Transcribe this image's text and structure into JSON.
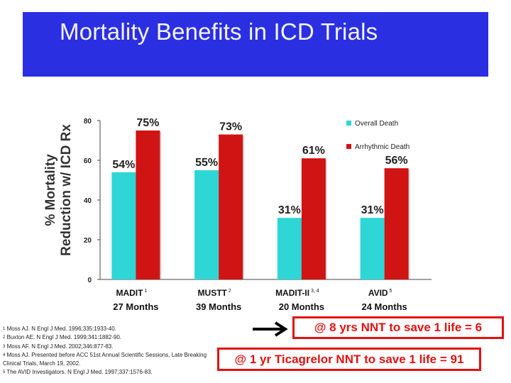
{
  "slide": {
    "title": "Mortality Benefits in ICD Trials",
    "annotation_1": "@ 8 yrs NNT to save 1 life = 6",
    "annotation_2": "@ 1 yr Ticagrelor NNT to save 1 life = 91",
    "references": [
      {
        "num": "1",
        "text": "Moss AJ. N Engl J Med. 1996;335:1933-40."
      },
      {
        "num": "2",
        "text": "Buxton AE. N Engl J Med. 1999;341:1882-90."
      },
      {
        "num": "3",
        "text": "Moss AF. N Engl J Med. 2002;346:877-83."
      },
      {
        "num": "4",
        "text": "Moss AJ. Presented before ACC 51st Annual Scientific Sessions, Late Breaking Clinical Trials, March 19, 2002."
      },
      {
        "num": "5",
        "text": "The AVID Investigators. N Engl J Med. 1997;337:1576-83."
      }
    ],
    "colors": {
      "title_band": "#2a2fe2",
      "overall": "#2ed6d6",
      "arrhythmic": "#d01414",
      "annotation": "#e21111"
    }
  },
  "chart_data": {
    "type": "bar",
    "ylabel_line1": "% Mortality",
    "ylabel_line2": "Reduction w/ ICD Rx",
    "ylim": [
      0,
      80
    ],
    "yticks": [
      "0",
      "20",
      "40",
      "60",
      "80"
    ],
    "categories": [
      {
        "name": "MADIT",
        "sup": "1",
        "duration": "27 Months"
      },
      {
        "name": "MUSTT",
        "sup": "2",
        "duration": "39 Months"
      },
      {
        "name": "MADIT-II",
        "sup": "3, 4",
        "duration": "20 Months"
      },
      {
        "name": "AVID",
        "sup": "5",
        "duration": "24 Months"
      }
    ],
    "series": [
      {
        "name": "Overall Death",
        "values": [
          54,
          55,
          31,
          31
        ],
        "labels": [
          "54%",
          "55%",
          "31%",
          "31%"
        ]
      },
      {
        "name": "Arrhythmic Death",
        "values": [
          75,
          73,
          61,
          56
        ],
        "labels": [
          "75%",
          "73%",
          "61%",
          "56%"
        ]
      }
    ],
    "legend": "top-right"
  }
}
